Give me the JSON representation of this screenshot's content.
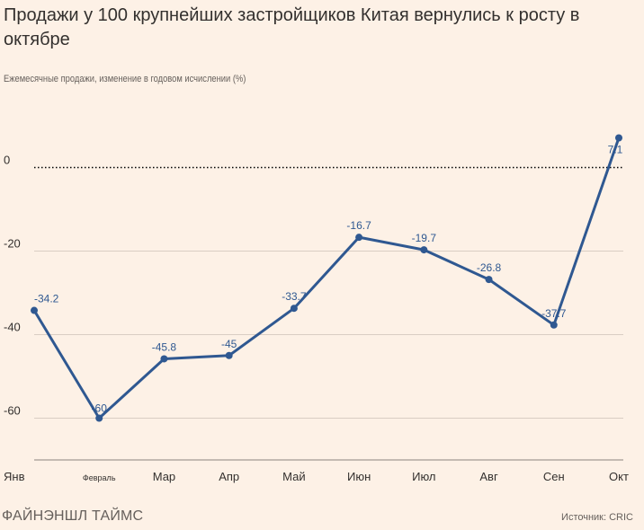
{
  "title": "Продажи у 100 крупнейших застройщиков Китая вернулись к росту в октябре",
  "subtitle": "Ежемесячные продажи, изменение в годовом исчислении (%)",
  "footer": {
    "logo": "ФАЙНЭНШЛ ТАЙМС",
    "source": "Источник: CRIC"
  },
  "colors": {
    "background": "#fdf1e6",
    "line": "#2f5891",
    "grid": "#d9cdc3",
    "zero_line": "#000000",
    "text": "#33302e",
    "muted": "#66605c"
  },
  "chart_data": {
    "type": "line",
    "categories": [
      "Янв",
      "Февраль",
      "Мар",
      "Апр",
      "Май",
      "Июн",
      "Июл",
      "Авг",
      "Сен",
      "Окт"
    ],
    "series": [
      {
        "values": [
          -34.2,
          -60,
          -45.8,
          -45,
          -33.7,
          -16.7,
          -19.7,
          -26.8,
          -37.7,
          7.1
        ]
      }
    ],
    "data_labels": [
      "-34.2",
      "-60",
      "-45.8",
      "-45",
      "-33.7",
      "-16.7",
      "-19.7",
      "-26.8",
      "-37.7",
      "7.1"
    ],
    "y_ticks": [
      0,
      -20,
      -40,
      -60
    ],
    "y_tick_labels": [
      "0",
      "-20",
      "-40",
      "-60"
    ],
    "ylim": [
      -70,
      10
    ],
    "zero_line": "dotted",
    "grid": true,
    "legend": "none"
  }
}
